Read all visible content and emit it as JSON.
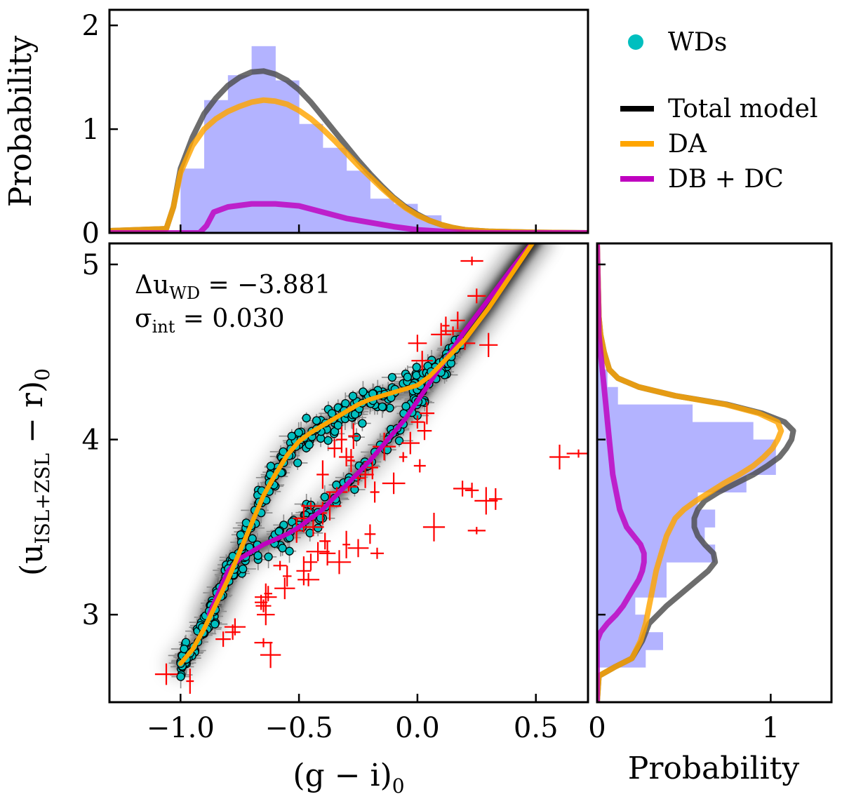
{
  "chart_data": [
    {
      "panel": "top-histogram",
      "type": "histogram",
      "ylabel": "Probability",
      "xlim": [
        -1.3,
        0.72
      ],
      "ylim": [
        0,
        2.15
      ],
      "yticks": [
        "0",
        "1",
        "2"
      ],
      "yticks_values": [
        0,
        1,
        2
      ],
      "xticks_values": [
        -1.0,
        -0.5,
        0.0,
        0.5
      ],
      "bins": {
        "edges": [
          -1.0,
          -0.9,
          -0.8,
          -0.7,
          -0.6,
          -0.5,
          -0.4,
          -0.3,
          -0.2,
          -0.1,
          0.0,
          0.1,
          0.2
        ],
        "values": [
          0.62,
          1.28,
          1.52,
          1.8,
          1.47,
          1.05,
          0.82,
          0.6,
          0.33,
          0.28,
          0.17,
          0.06
        ]
      },
      "series": [
        {
          "name": "Total model",
          "color": "#4d4d4d",
          "x": [
            -1.3,
            -1.06,
            -1.03,
            -1.0,
            -0.95,
            -0.9,
            -0.85,
            -0.8,
            -0.75,
            -0.7,
            -0.65,
            -0.6,
            -0.55,
            -0.5,
            -0.45,
            -0.4,
            -0.35,
            -0.3,
            -0.25,
            -0.2,
            -0.15,
            -0.1,
            -0.05,
            0.0,
            0.05,
            0.1,
            0.15,
            0.2,
            0.3,
            0.4,
            0.5,
            0.72
          ],
          "y": [
            0.02,
            0.04,
            0.25,
            0.62,
            0.92,
            1.15,
            1.3,
            1.42,
            1.5,
            1.55,
            1.56,
            1.53,
            1.47,
            1.38,
            1.26,
            1.12,
            0.98,
            0.84,
            0.7,
            0.57,
            0.45,
            0.34,
            0.25,
            0.18,
            0.12,
            0.08,
            0.05,
            0.03,
            0.015,
            0.01,
            0.005,
            0.0
          ]
        },
        {
          "name": "DA",
          "color": "#ffa500",
          "x": [
            -1.3,
            -1.06,
            -1.03,
            -1.0,
            -0.95,
            -0.9,
            -0.85,
            -0.8,
            -0.75,
            -0.7,
            -0.65,
            -0.6,
            -0.55,
            -0.5,
            -0.45,
            -0.4,
            -0.35,
            -0.3,
            -0.25,
            -0.2,
            -0.15,
            -0.1,
            -0.05,
            0.0,
            0.05,
            0.1,
            0.15,
            0.2,
            0.3,
            0.4,
            0.5,
            0.72
          ],
          "y": [
            0.02,
            0.04,
            0.25,
            0.58,
            0.84,
            1.0,
            1.1,
            1.17,
            1.22,
            1.26,
            1.28,
            1.27,
            1.24,
            1.18,
            1.1,
            1.0,
            0.89,
            0.77,
            0.65,
            0.54,
            0.43,
            0.33,
            0.24,
            0.17,
            0.12,
            0.08,
            0.05,
            0.03,
            0.015,
            0.01,
            0.005,
            0.0
          ]
        },
        {
          "name": "DB + DC",
          "color": "#bf00bf",
          "x": [
            -1.3,
            -0.92,
            -0.89,
            -0.86,
            -0.8,
            -0.7,
            -0.6,
            -0.5,
            -0.4,
            -0.3,
            -0.2,
            -0.1,
            0.0,
            0.1,
            0.2,
            0.3,
            0.72
          ],
          "y": [
            0.0,
            0.0,
            0.07,
            0.2,
            0.25,
            0.28,
            0.28,
            0.26,
            0.2,
            0.14,
            0.1,
            0.06,
            0.03,
            0.015,
            0.005,
            0.0,
            0.0
          ]
        }
      ]
    },
    {
      "panel": "main-scatter",
      "type": "scatter",
      "xlabel": "(g − i)",
      "xlabel_sub": "0",
      "ylabel_main": "(u",
      "ylabel_sub": "ISL+ZSL",
      "ylabel_rest": " − r)",
      "ylabel_end_sub": "0",
      "xlim": [
        -1.3,
        0.72
      ],
      "ylim": [
        2.5,
        5.12
      ],
      "xticks": [
        "−1.0",
        "−0.5",
        "0.0",
        "0.5"
      ],
      "xticks_values": [
        -1.0,
        -0.5,
        0.0,
        0.5
      ],
      "yticks": [
        "3",
        "4",
        "5"
      ],
      "yticks_values": [
        3,
        4,
        5
      ],
      "annotations": {
        "delta_u_symbol": "Δu",
        "delta_u_sub": "WD",
        "delta_u_value": " = −3.881",
        "sigma_symbol": "σ",
        "sigma_sub": "int",
        "sigma_value": " = 0.030"
      },
      "series": [
        {
          "name": "Total model band",
          "color": "#000000"
        },
        {
          "name": "DA",
          "color": "#ffa500",
          "x": [
            -1.0,
            -0.95,
            -0.9,
            -0.85,
            -0.8,
            -0.75,
            -0.7,
            -0.65,
            -0.6,
            -0.55,
            -0.5,
            -0.45,
            -0.4,
            -0.35,
            -0.3,
            -0.25,
            -0.2,
            -0.15,
            -0.1,
            -0.05,
            0.0,
            0.05,
            0.1,
            0.15,
            0.2,
            0.3,
            0.4,
            0.5
          ],
          "y": [
            2.72,
            2.8,
            2.92,
            3.06,
            3.2,
            3.36,
            3.52,
            3.68,
            3.8,
            3.91,
            3.99,
            4.04,
            4.08,
            4.12,
            4.16,
            4.2,
            4.23,
            4.25,
            4.27,
            4.29,
            4.31,
            4.36,
            4.43,
            4.5,
            4.57,
            4.75,
            4.95,
            5.15
          ]
        },
        {
          "name": "DB + DC",
          "color": "#bf00bf",
          "x": [
            -0.88,
            -0.8,
            -0.75,
            -0.7,
            -0.65,
            -0.6,
            -0.55,
            -0.5,
            -0.45,
            -0.4,
            -0.35,
            -0.3,
            -0.25,
            -0.2,
            -0.15,
            -0.1,
            -0.05,
            0.0,
            0.05,
            0.1,
            0.15,
            0.2,
            0.3,
            0.4,
            0.5
          ],
          "y": [
            3.0,
            3.25,
            3.32,
            3.36,
            3.4,
            3.43,
            3.46,
            3.5,
            3.55,
            3.6,
            3.67,
            3.74,
            3.81,
            3.88,
            3.96,
            4.04,
            4.12,
            4.22,
            4.32,
            4.42,
            4.52,
            4.62,
            4.8,
            4.98,
            5.15
          ]
        },
        {
          "name": "WDs",
          "color": "#00bfbf",
          "n_points": 420,
          "trace": "upper and lower WD sequences"
        },
        {
          "name": "Outliers",
          "color": "#ff0000",
          "points": [
            [
              -1.06,
              2.66
            ],
            [
              -0.96,
              2.62
            ],
            [
              -0.82,
              2.86
            ],
            [
              -0.78,
              2.9
            ],
            [
              -0.77,
              2.93
            ],
            [
              -0.65,
              2.84
            ],
            [
              -0.62,
              2.77
            ],
            [
              -0.64,
              3.0
            ],
            [
              -0.65,
              3.05
            ],
            [
              -0.64,
              3.1
            ],
            [
              -0.63,
              3.12
            ],
            [
              -0.66,
              3.07
            ],
            [
              -0.55,
              3.22
            ],
            [
              -0.58,
              3.28
            ],
            [
              -0.56,
              3.15
            ],
            [
              -0.48,
              3.25
            ],
            [
              -0.46,
              3.2
            ],
            [
              -0.45,
              3.3
            ],
            [
              -0.42,
              3.36
            ],
            [
              -0.39,
              3.42
            ],
            [
              -0.38,
              3.35
            ],
            [
              -0.33,
              3.3
            ],
            [
              -0.3,
              3.4
            ],
            [
              -0.25,
              3.38
            ],
            [
              -0.17,
              3.35
            ],
            [
              -0.51,
              3.48
            ],
            [
              -0.48,
              3.55
            ],
            [
              -0.44,
              3.5
            ],
            [
              -0.4,
              3.58
            ],
            [
              -0.37,
              3.62
            ],
            [
              -0.34,
              3.7
            ],
            [
              -0.29,
              3.73
            ],
            [
              -0.25,
              3.78
            ],
            [
              -0.22,
              3.8
            ],
            [
              -0.19,
              3.84
            ],
            [
              -0.14,
              3.96
            ],
            [
              -0.18,
              3.7
            ],
            [
              -0.2,
              3.46
            ],
            [
              -0.06,
              3.9
            ],
            [
              -0.03,
              3.98
            ],
            [
              0.0,
              4.1
            ],
            [
              0.03,
              4.05
            ],
            [
              0.04,
              4.15
            ],
            [
              0.01,
              3.85
            ],
            [
              0.07,
              3.5
            ],
            [
              0.19,
              3.72
            ],
            [
              0.23,
              3.71
            ],
            [
              0.25,
              3.48
            ],
            [
              0.29,
              3.65
            ],
            [
              0.33,
              3.66
            ],
            [
              -0.3,
              3.9
            ],
            [
              -0.35,
              3.95
            ],
            [
              -0.32,
              4.0
            ],
            [
              -0.27,
              4.02
            ],
            [
              -0.28,
              3.88
            ],
            [
              -0.1,
              3.75
            ],
            [
              0.02,
              4.45
            ],
            [
              0.0,
              4.55
            ],
            [
              0.1,
              4.6
            ],
            [
              0.12,
              4.65
            ],
            [
              0.15,
              4.62
            ],
            [
              0.17,
              4.68
            ],
            [
              0.2,
              4.55
            ],
            [
              0.3,
              4.54
            ],
            [
              0.25,
              4.82
            ],
            [
              0.23,
              5.02
            ],
            [
              0.6,
              3.9
            ],
            [
              0.68,
              3.92
            ],
            [
              -0.4,
              3.8
            ],
            [
              -0.45,
              3.62
            ]
          ]
        }
      ]
    },
    {
      "panel": "right-histogram",
      "type": "histogram",
      "orientation": "horizontal",
      "xlabel": "Probability",
      "xlim": [
        0,
        1.35
      ],
      "xticks": [
        "0",
        "1"
      ],
      "xticks_values": [
        0,
        1
      ],
      "bins": {
        "edges": [
          2.7,
          2.8,
          2.9,
          3.0,
          3.1,
          3.2,
          3.3,
          3.4,
          3.5,
          3.6,
          3.7,
          3.8,
          3.9,
          4.0,
          4.1,
          4.2,
          4.3,
          4.4,
          4.5,
          4.6,
          4.7,
          4.8
        ],
        "values": [
          0.28,
          0.38,
          0.28,
          0.22,
          0.4,
          0.4,
          0.68,
          0.62,
          0.68,
          0.58,
          0.86,
          1.03,
          1.03,
          0.9,
          0.55,
          0.12,
          0.06,
          0.04,
          0.03,
          0.02,
          0.01
        ]
      },
      "series": [
        {
          "name": "Total model",
          "color": "#4d4d4d",
          "y": [
            2.5,
            2.65,
            2.7,
            2.75,
            2.85,
            2.95,
            3.05,
            3.15,
            3.25,
            3.3,
            3.35,
            3.4,
            3.45,
            3.5,
            3.55,
            3.6,
            3.65,
            3.7,
            3.75,
            3.8,
            3.85,
            3.9,
            3.95,
            4.0,
            4.05,
            4.1,
            4.15,
            4.2,
            4.25,
            4.3,
            4.35,
            4.4,
            4.5,
            4.6,
            4.7,
            5.12
          ],
          "x": [
            0.0,
            0.01,
            0.1,
            0.2,
            0.26,
            0.3,
            0.4,
            0.52,
            0.64,
            0.68,
            0.67,
            0.62,
            0.58,
            0.56,
            0.56,
            0.58,
            0.62,
            0.7,
            0.8,
            0.9,
            0.98,
            1.05,
            1.09,
            1.12,
            1.13,
            1.08,
            0.95,
            0.75,
            0.45,
            0.24,
            0.12,
            0.07,
            0.04,
            0.02,
            0.01,
            0.0
          ]
        },
        {
          "name": "DA",
          "color": "#ffa500",
          "y": [
            2.5,
            2.65,
            2.7,
            2.75,
            2.85,
            2.95,
            3.05,
            3.15,
            3.25,
            3.35,
            3.45,
            3.55,
            3.6,
            3.65,
            3.7,
            3.75,
            3.8,
            3.85,
            3.9,
            3.95,
            4.0,
            4.05,
            4.1,
            4.15,
            4.2,
            4.25,
            4.3,
            4.35,
            4.4,
            4.5,
            4.6,
            4.7,
            5.12
          ],
          "x": [
            0.0,
            0.01,
            0.1,
            0.2,
            0.25,
            0.28,
            0.3,
            0.32,
            0.34,
            0.37,
            0.4,
            0.45,
            0.5,
            0.57,
            0.65,
            0.73,
            0.82,
            0.9,
            0.96,
            1.01,
            1.04,
            1.06,
            1.04,
            0.93,
            0.74,
            0.45,
            0.24,
            0.12,
            0.07,
            0.04,
            0.02,
            0.01,
            0.0
          ]
        },
        {
          "name": "DB + DC",
          "color": "#bf00bf",
          "y": [
            2.5,
            2.85,
            2.9,
            2.95,
            3.0,
            3.05,
            3.1,
            3.15,
            3.2,
            3.25,
            3.3,
            3.35,
            3.4,
            3.45,
            3.5,
            3.6,
            3.7,
            3.8,
            3.9,
            4.0,
            4.1,
            4.2,
            4.3,
            4.4,
            4.5,
            4.6,
            5.12
          ],
          "x": [
            0.0,
            0.0,
            0.02,
            0.06,
            0.11,
            0.15,
            0.18,
            0.21,
            0.24,
            0.26,
            0.27,
            0.27,
            0.25,
            0.21,
            0.17,
            0.13,
            0.11,
            0.09,
            0.08,
            0.07,
            0.06,
            0.05,
            0.04,
            0.03,
            0.02,
            0.01,
            0.0
          ]
        }
      ]
    }
  ],
  "legend": {
    "wds_label": "WDs",
    "total_label": "Total model",
    "da_label": "DA",
    "dbdc_label": "DB + DC",
    "wds_color": "#00bfbf",
    "total_color": "#000000",
    "da_color": "#ffa500",
    "dbdc_color": "#bf00bf"
  }
}
